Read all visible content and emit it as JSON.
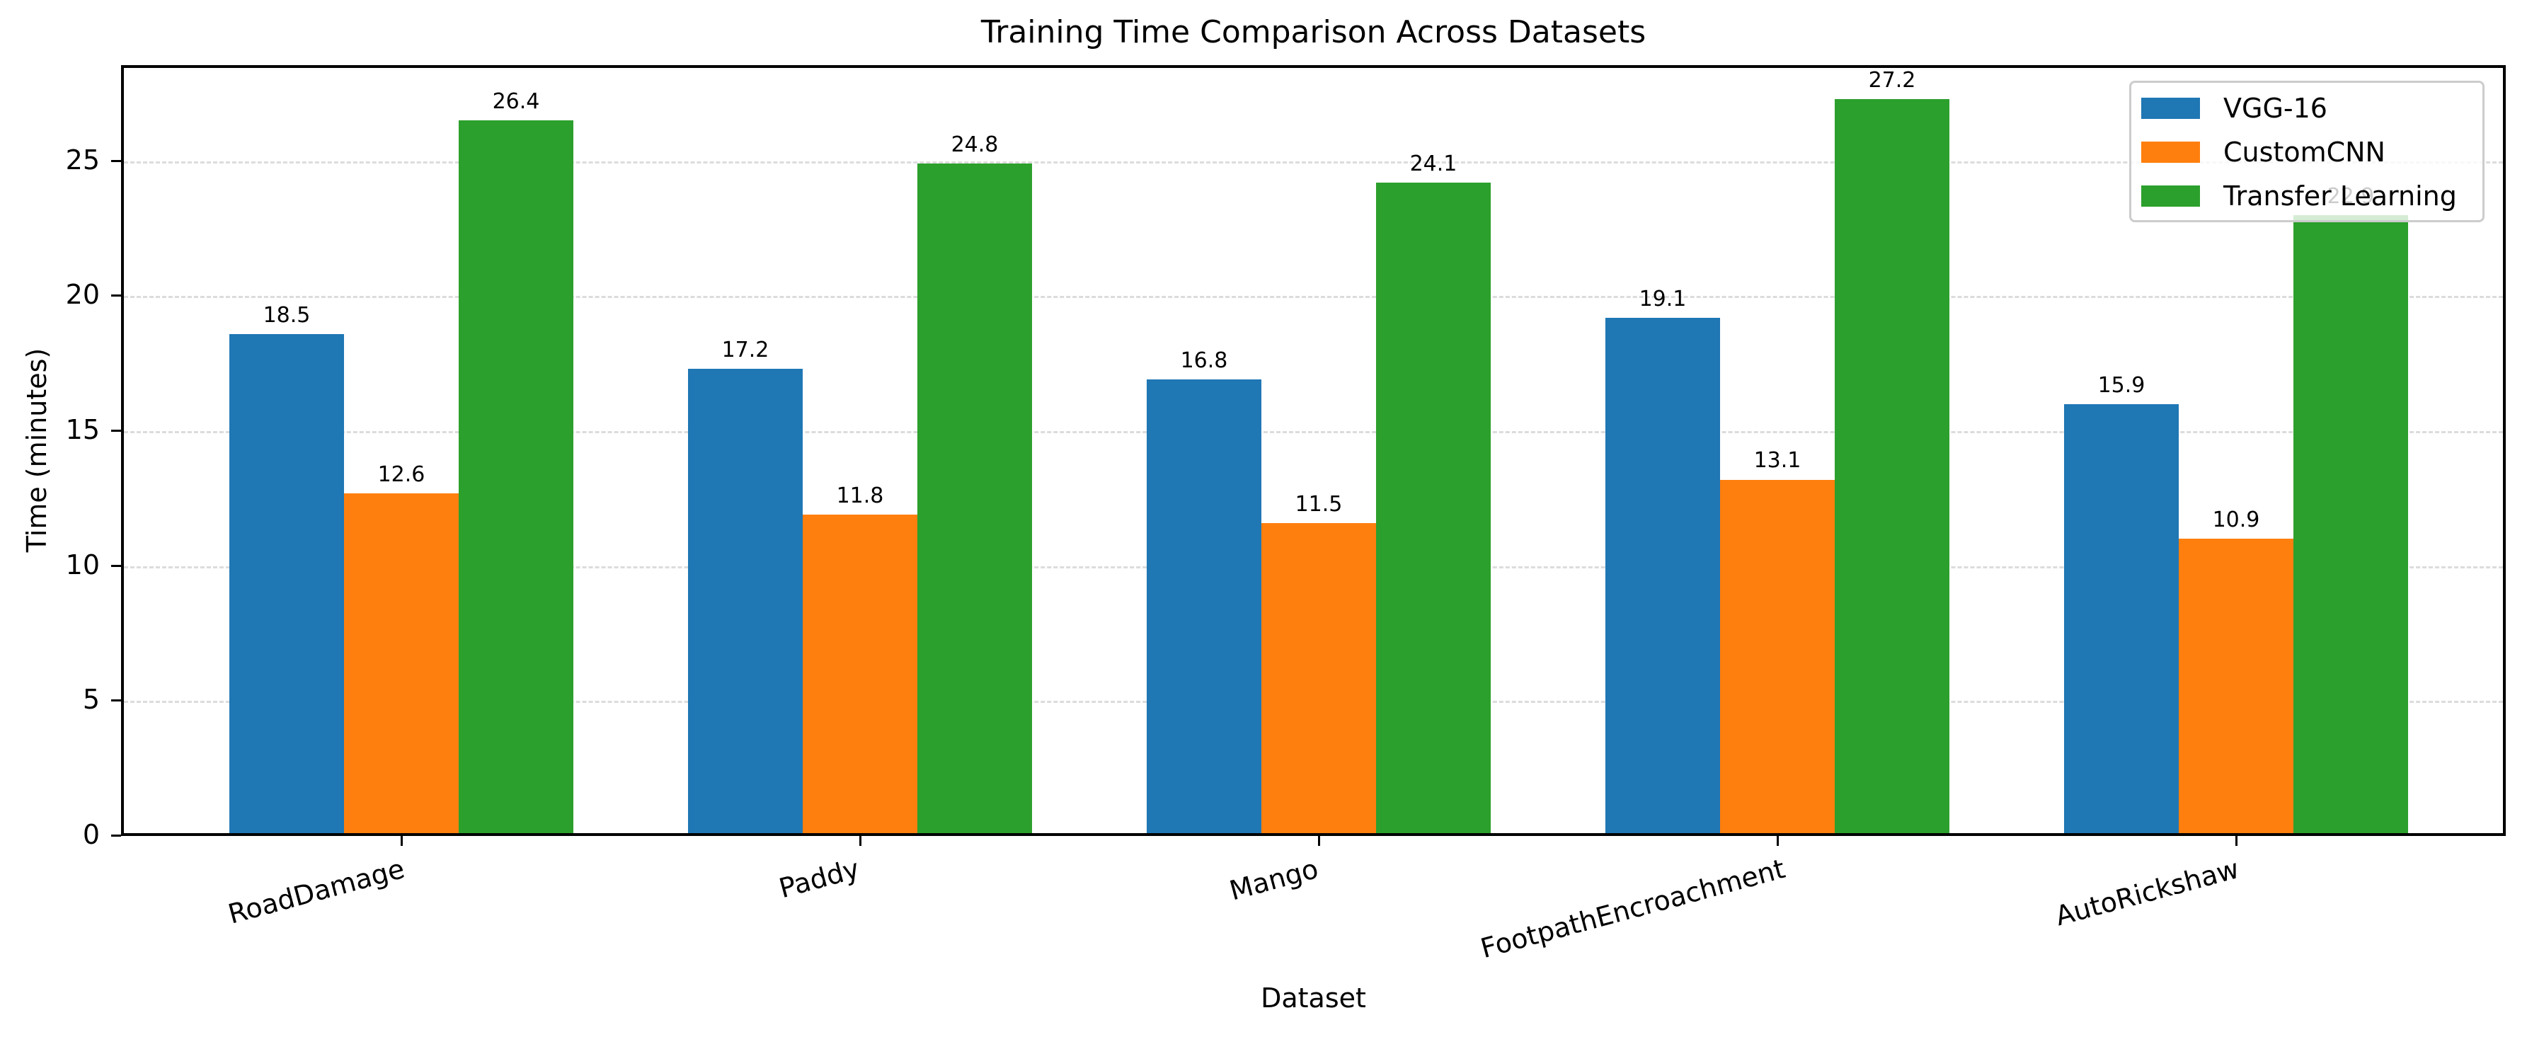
{
  "chart_data": {
    "type": "bar",
    "title": "Training Time Comparison Across Datasets",
    "xlabel": "Dataset",
    "ylabel": "Time (minutes)",
    "categories": [
      "RoadDamage",
      "Paddy",
      "Mango",
      "FootpathEncroachment",
      "AutoRickshaw"
    ],
    "series": [
      {
        "name": "VGG-16",
        "color": "#1f77b4",
        "values": [
          18.5,
          17.2,
          16.8,
          19.1,
          15.9
        ]
      },
      {
        "name": "CustomCNN",
        "color": "#ff7f0e",
        "values": [
          12.6,
          11.8,
          11.5,
          13.1,
          10.9
        ]
      },
      {
        "name": "Transfer Learning",
        "color": "#2ca02c",
        "values": [
          26.4,
          24.8,
          24.1,
          27.2,
          22.9
        ]
      }
    ],
    "yticks": [
      0,
      5,
      10,
      15,
      20,
      25
    ],
    "ylim": [
      0,
      28.56
    ],
    "grid": {
      "y": true,
      "style": "dashed"
    },
    "legend_position": "upper right",
    "bar_value_labels": true,
    "xtick_rotation": 15
  }
}
